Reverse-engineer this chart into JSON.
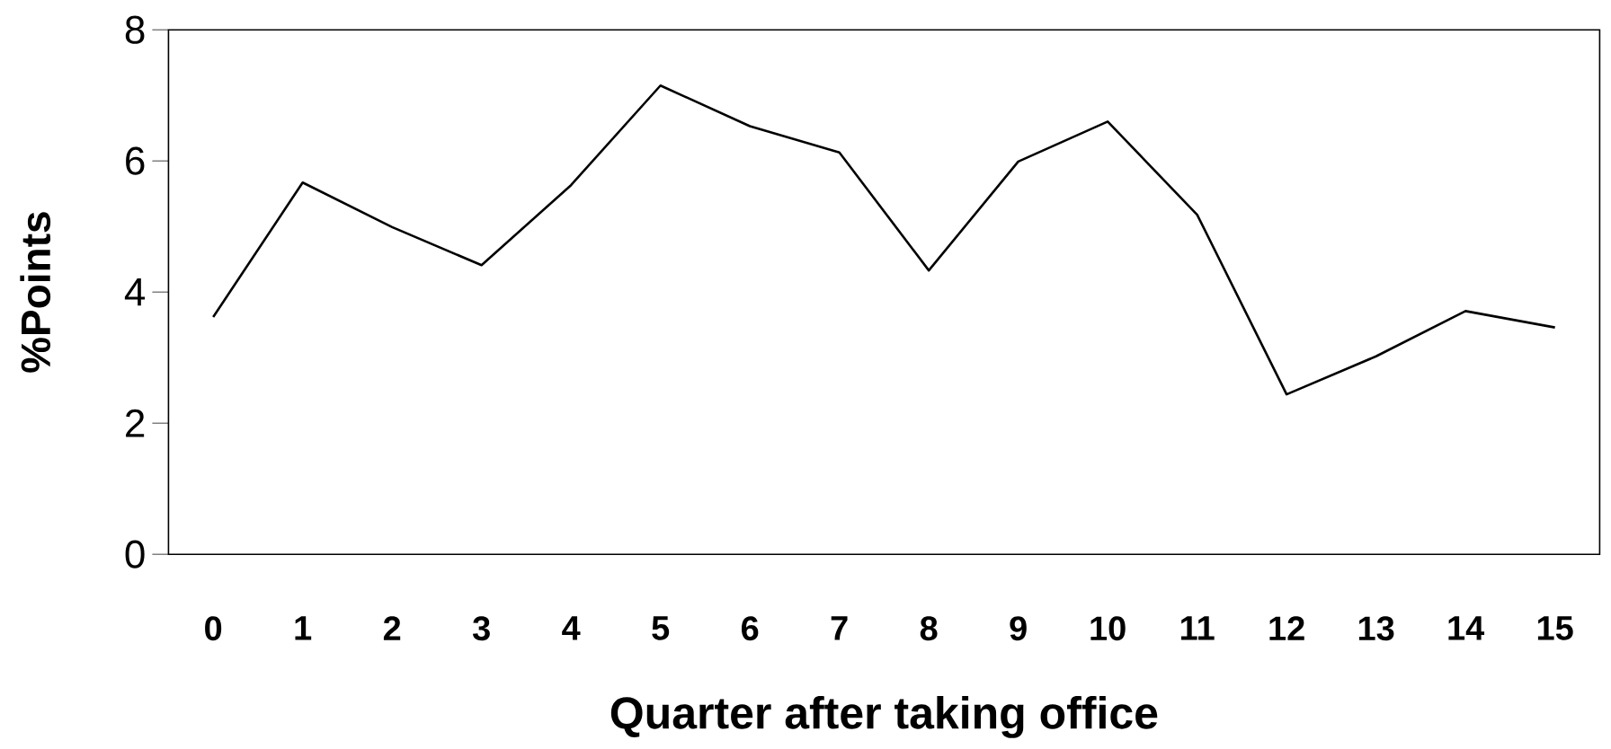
{
  "chart_data": {
    "type": "line",
    "xlabel": "Quarter after taking office",
    "ylabel": "%Points",
    "categories": [
      "0",
      "1",
      "2",
      "3",
      "4",
      "5",
      "6",
      "7",
      "8",
      "9",
      "10",
      "11",
      "12",
      "13",
      "14",
      "15"
    ],
    "values": [
      3.62,
      5.67,
      4.99,
      4.41,
      5.63,
      7.15,
      6.53,
      6.13,
      4.33,
      5.99,
      6.6,
      5.18,
      2.44,
      3.02,
      3.71,
      3.46
    ],
    "color": "#000000",
    "ylim": [
      0,
      8
    ],
    "yticks": [
      0,
      2,
      4,
      6,
      8
    ],
    "grid": false
  }
}
